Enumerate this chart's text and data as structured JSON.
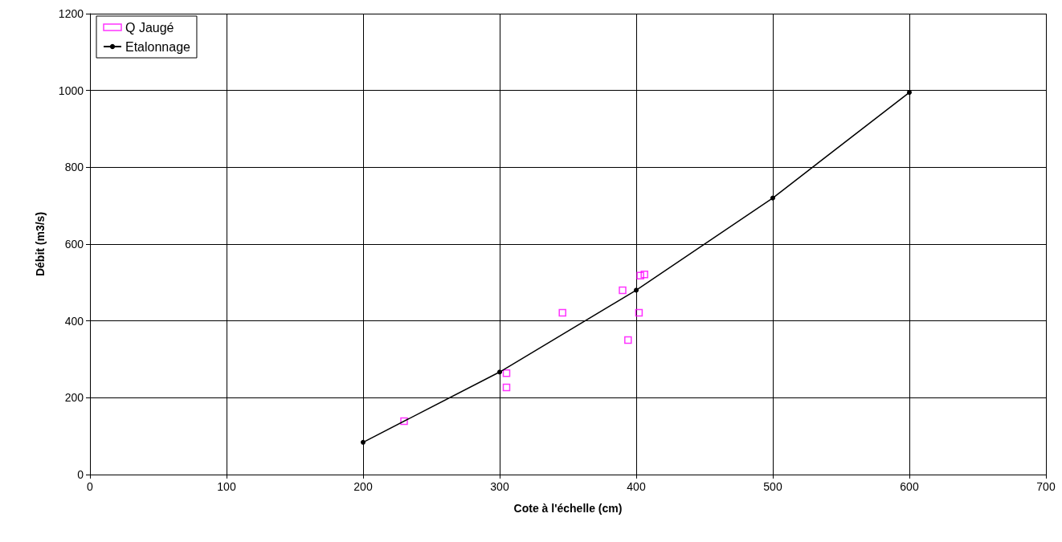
{
  "chart_data": {
    "type": "scatter",
    "xlabel": "Cote à l'échelle (cm)",
    "ylabel": "Débit (m3/s)",
    "xlim": [
      0,
      700
    ],
    "xticks": [
      0,
      100,
      200,
      300,
      400,
      500,
      600,
      700
    ],
    "ylim": [
      0,
      1200
    ],
    "yticks": [
      0,
      200,
      400,
      600,
      800,
      1000,
      1200
    ],
    "grid": true,
    "legend": "top left",
    "series": [
      {
        "name": "Q Jaugé",
        "marker": "square",
        "color": "#ff00ff",
        "x": [
          230,
          305,
          305,
          346,
          390,
          394,
          402,
          403,
          406
        ],
        "values": [
          139,
          264,
          227,
          421,
          480,
          350,
          421,
          518,
          521
        ]
      },
      {
        "name": "Etalonnage",
        "type": "line",
        "marker": "circle",
        "color": "#000000",
        "x": [
          200,
          300,
          400,
          500,
          600
        ],
        "values": [
          84,
          267,
          480,
          720,
          995
        ]
      }
    ]
  }
}
